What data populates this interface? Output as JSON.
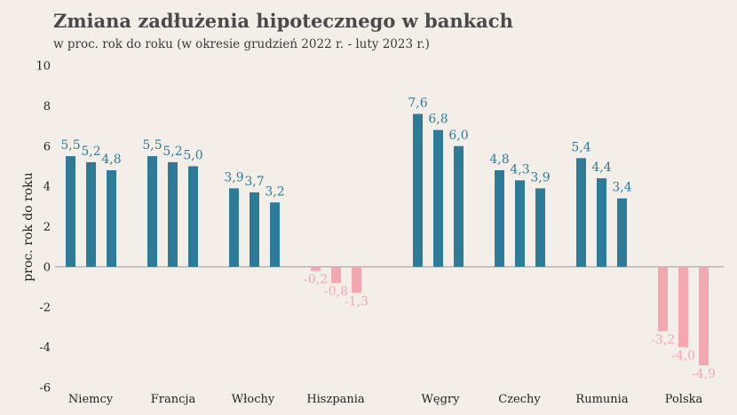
{
  "chart_data": {
    "type": "bar",
    "title": "Zmiana zadłużenia hipotecznego w bankach",
    "subtitle": "w proc. rok do roku (w okresie grudzień 2022 r. - luty 2023 r.)",
    "ylabel": "proc. rok do roku",
    "xlabel": "",
    "ylim": [
      -6,
      10
    ],
    "yticks": [
      10,
      8,
      6,
      4,
      2,
      0,
      -2,
      -4,
      -6
    ],
    "grid": false,
    "legend": "none",
    "categories": [
      "Niemcy",
      "Francja",
      "Włochy",
      "Hiszpania",
      "Węgry",
      "Czechy",
      "Rumunia",
      "Polska"
    ],
    "series": [
      {
        "values": [
          5.5,
          5.5,
          3.9,
          -0.2,
          7.6,
          4.8,
          5.4,
          -3.2
        ]
      },
      {
        "values": [
          5.2,
          5.2,
          3.7,
          -0.8,
          6.8,
          4.3,
          4.4,
          -4.0
        ]
      },
      {
        "values": [
          4.8,
          5.0,
          3.2,
          -1.3,
          6.0,
          3.9,
          3.4,
          -4.9
        ]
      }
    ],
    "labels": [
      [
        "5,5",
        "5,2",
        "4,8"
      ],
      [
        "5,5",
        "5,2",
        "5,0"
      ],
      [
        "3,9",
        "3,7",
        "3,2"
      ],
      [
        "-0,2",
        "-0,8",
        "-1,3"
      ],
      [
        "7,6",
        "6,8",
        "6,0"
      ],
      [
        "4,8",
        "4,3",
        "3,9"
      ],
      [
        "5,4",
        "4,4",
        "3,4"
      ],
      [
        "-3,2",
        "-4,0",
        "-4,9"
      ]
    ],
    "colors": {
      "positive": "#2e7a99",
      "negative": "#f4a7ae",
      "axis": "#9a9a9a"
    }
  }
}
